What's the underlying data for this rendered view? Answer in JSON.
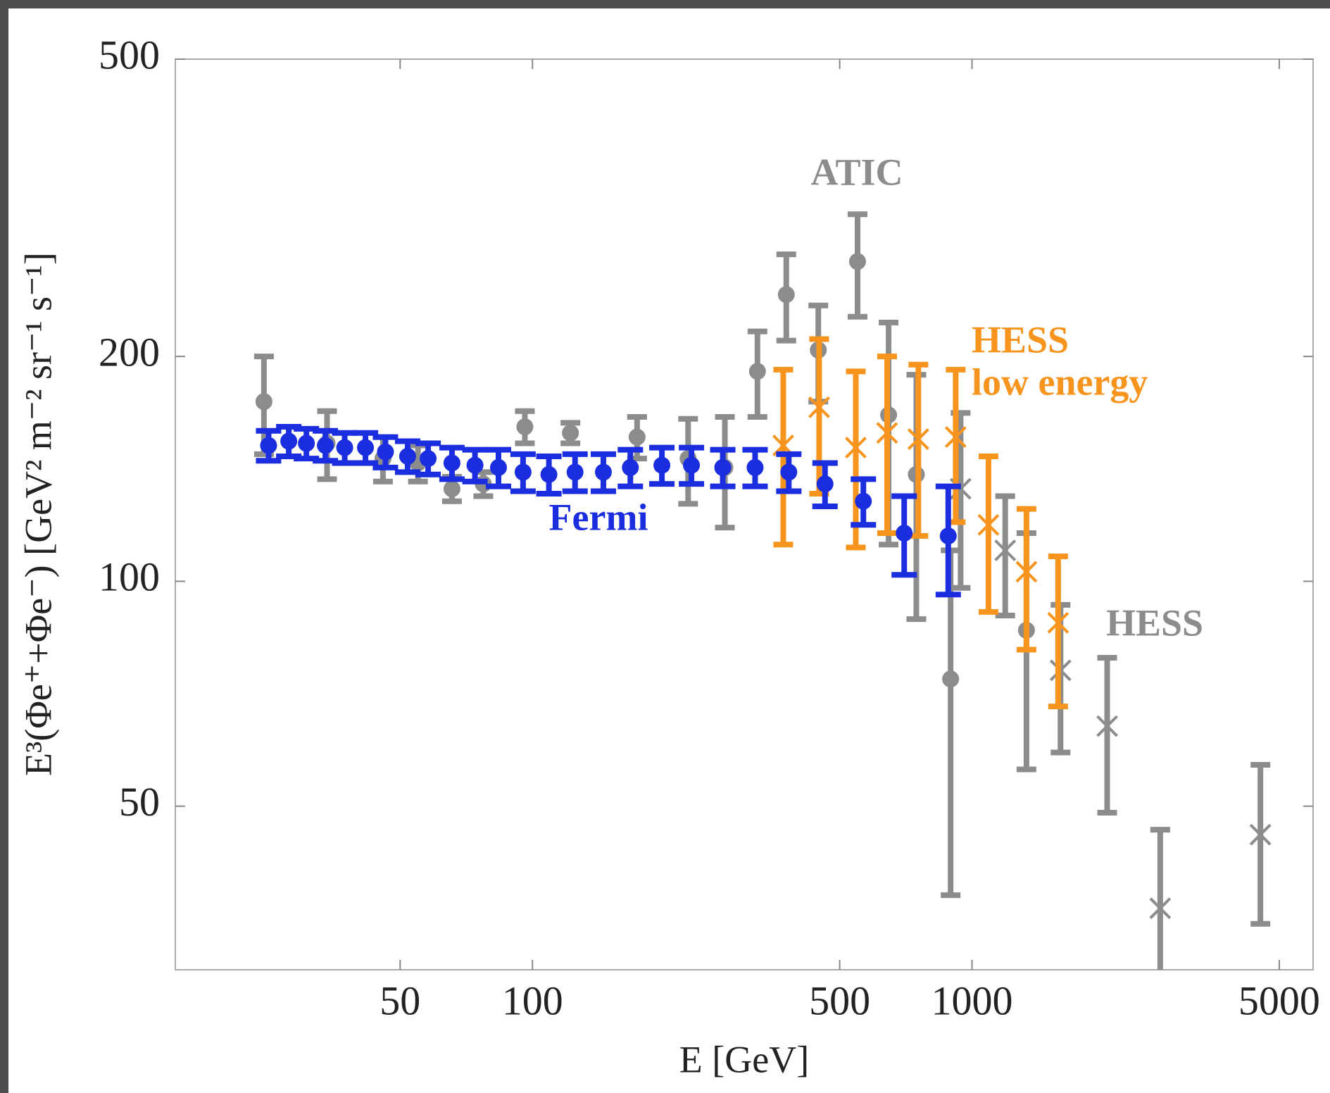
{
  "chart_data": {
    "type": "errorbar-scatter",
    "xlabel": "E [GeV]",
    "ylabel": "E³(Φe⁺+Φe⁻) [GeV² m⁻² sr⁻¹ s⁻¹]",
    "log_x": true,
    "log_y": true,
    "xlim": [
      15.4,
      5970
    ],
    "ylim": [
      30.2,
      500
    ],
    "xticks": [
      50,
      100,
      500,
      1000,
      5000
    ],
    "yticks": [
      50,
      100,
      200,
      500
    ],
    "series": [
      {
        "label": "ATIC",
        "color": "#8c8c8c",
        "marker": "circle",
        "x": [
          24.5,
          34.1,
          45.7,
          54.9,
          65.6,
          77.3,
          96.1,
          122,
          173,
          226,
          274,
          325,
          378,
          447,
          549,
          646,
          747,
          894,
          1330
        ],
        "values": [
          174,
          153,
          146,
          144,
          133,
          135,
          161,
          158,
          156,
          146,
          142,
          191,
          242,
          204,
          268,
          167,
          139,
          74,
          86
        ],
        "errors": [
          26,
          16,
          10,
          8,
          5,
          5,
          8,
          5,
          10,
          19,
          24,
          25,
          32,
          30,
          42,
          55,
          50,
          36,
          30
        ]
      },
      {
        "label": "HESS",
        "color": "#8c8c8c",
        "marker": "x",
        "x": [
          942,
          1190,
          1590,
          2030,
          2680,
          4530
        ],
        "values": [
          133,
          110,
          76,
          64,
          36.5,
          45.8
        ],
        "errors": [
          35,
          20,
          17,
          15,
          10,
          11
        ]
      },
      {
        "label": [
          "HESS",
          "low energy"
        ],
        "color": "#f7941d",
        "marker": "x",
        "x": [
          372,
          449,
          544,
          641,
          755,
          918,
          1090,
          1330,
          1570
        ],
        "values": [
          152,
          171,
          151,
          158,
          155,
          156,
          119,
          103,
          88
        ],
        "errors": [
          40,
          40,
          40,
          42,
          40,
          36,
          28,
          22,
          20
        ]
      },
      {
        "label": "Fermi",
        "color": "#1a2ee0",
        "marker": "circle",
        "x": [
          25.1,
          27.9,
          30.6,
          33.8,
          37.4,
          41.7,
          46.3,
          52.0,
          57.9,
          65.6,
          74.0,
          83.7,
          95.2,
          109,
          125,
          145,
          167,
          197,
          230,
          271,
          321,
          383,
          463,
          566,
          701,
          883
        ],
        "values": [
          152,
          154,
          153,
          152,
          151,
          151,
          149,
          147,
          146,
          144,
          143,
          142,
          140,
          139,
          140,
          140,
          142,
          143,
          143,
          142,
          142,
          140,
          135,
          128,
          116,
          115
        ],
        "errors": [
          7,
          7,
          7,
          7,
          7,
          7,
          7,
          7,
          7,
          7,
          7,
          8,
          8,
          8,
          8,
          8,
          8,
          8,
          8,
          8,
          8,
          8,
          9,
          9,
          14,
          19
        ]
      }
    ]
  }
}
